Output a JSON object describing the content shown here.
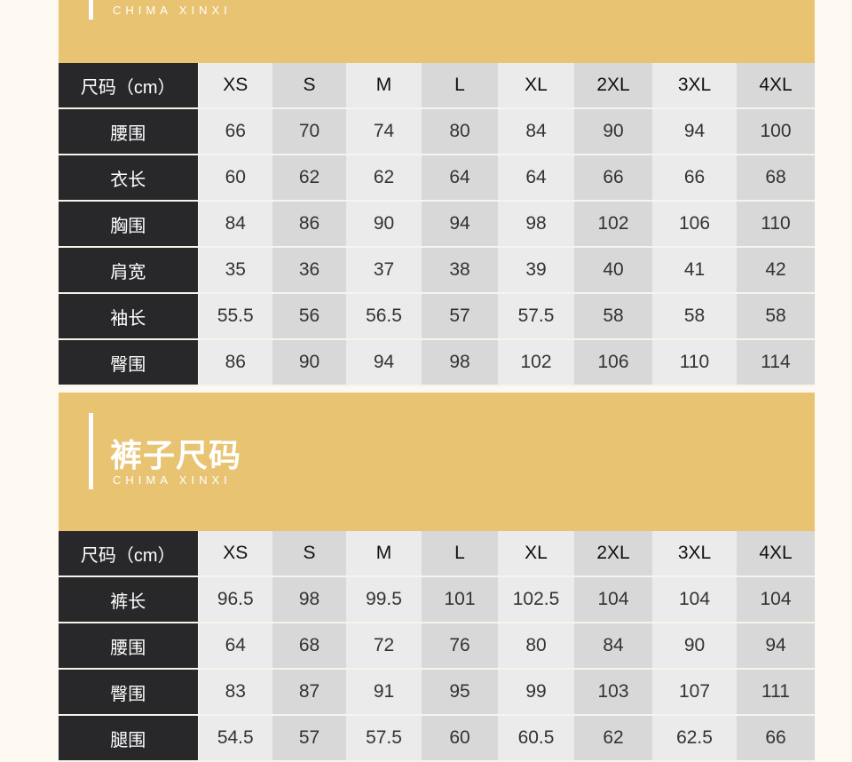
{
  "colors": {
    "gold": "#e8c372",
    "dark": "#28282b",
    "light_cell": "#ebebeb",
    "dark_cell": "#d8d8d8"
  },
  "section1": {
    "subtitle": "CHIMA XINXI",
    "header": [
      "尺码（cm）",
      "XS",
      "S",
      "M",
      "L",
      "XL",
      "2XL",
      "3XL",
      "4XL"
    ],
    "rows": [
      {
        "label": "腰围",
        "values": [
          "66",
          "70",
          "74",
          "80",
          "84",
          "90",
          "94",
          "100"
        ]
      },
      {
        "label": "衣长",
        "values": [
          "60",
          "62",
          "62",
          "64",
          "64",
          "66",
          "66",
          "68"
        ]
      },
      {
        "label": "胸围",
        "values": [
          "84",
          "86",
          "90",
          "94",
          "98",
          "102",
          "106",
          "110"
        ]
      },
      {
        "label": "肩宽",
        "values": [
          "35",
          "36",
          "37",
          "38",
          "39",
          "40",
          "41",
          "42"
        ]
      },
      {
        "label": "袖长",
        "values": [
          "55.5",
          "56",
          "56.5",
          "57",
          "57.5",
          "58",
          "58",
          "58"
        ]
      },
      {
        "label": "臀围",
        "values": [
          "86",
          "90",
          "94",
          "98",
          "102",
          "106",
          "110",
          "114"
        ]
      }
    ]
  },
  "section2": {
    "title": "裤子尺码",
    "subtitle": "CHIMA XINXI",
    "header": [
      "尺码（cm）",
      "XS",
      "S",
      "M",
      "L",
      "XL",
      "2XL",
      "3XL",
      "4XL"
    ],
    "rows": [
      {
        "label": "裤长",
        "values": [
          "96.5",
          "98",
          "99.5",
          "101",
          "102.5",
          "104",
          "104",
          "104"
        ]
      },
      {
        "label": "腰围",
        "values": [
          "64",
          "68",
          "72",
          "76",
          "80",
          "84",
          "90",
          "94"
        ]
      },
      {
        "label": "臀围",
        "values": [
          "83",
          "87",
          "91",
          "95",
          "99",
          "103",
          "107",
          "111"
        ]
      },
      {
        "label": "腿围",
        "values": [
          "54.5",
          "57",
          "57.5",
          "60",
          "60.5",
          "62",
          "62.5",
          "66"
        ]
      }
    ]
  }
}
